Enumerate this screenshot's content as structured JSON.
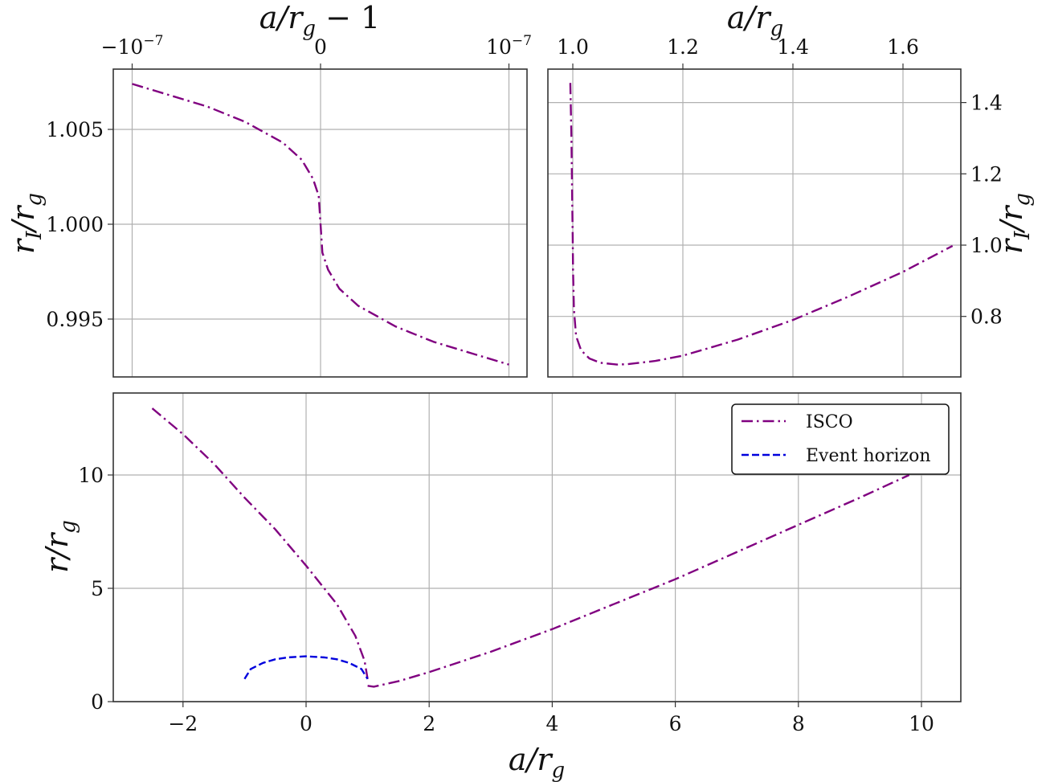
{
  "colors": {
    "isco": "#800080",
    "event_horizon": "#0000dd",
    "grid": "#b0b0b0",
    "frame": "#333333"
  },
  "chart_data": [
    {
      "id": "top-left",
      "type": "line",
      "title": "",
      "xlabel": "a/r_g − 1",
      "xlabel_position": "top",
      "ylabel": "r_I/r_g",
      "ylabel_position": "left",
      "xlim": [
        -1.1e-07,
        1.1e-07
      ],
      "ylim": [
        0.9919,
        1.0082
      ],
      "x_ticks": [
        -1e-07,
        0,
        1e-07
      ],
      "x_tick_labels": [
        "−10",
        "0",
        "10"
      ],
      "x_tick_exponents": [
        "−7",
        "",
        "−7"
      ],
      "y_ticks": [
        1.005,
        1.0,
        0.995
      ],
      "y_tick_labels": [
        "1.005",
        "1.000",
        "0.995"
      ],
      "grid": true,
      "series": [
        {
          "name": "ISCO",
          "style": "dashdot",
          "x": [
            -1e-07,
            -8e-08,
            -6e-08,
            -4e-08,
            -2e-08,
            -1e-08,
            -4e-09,
            -1e-09,
            0,
            1e-09,
            4e-09,
            1e-08,
            2e-08,
            4e-08,
            6e-08,
            8e-08,
            1e-07
          ],
          "y": [
            1.0074,
            1.0068,
            1.0062,
            1.0054,
            1.0043,
            1.0034,
            1.0024,
            1.0015,
            1.0,
            0.9985,
            0.9976,
            0.9966,
            0.9957,
            0.9946,
            0.9938,
            0.9932,
            0.9926
          ]
        }
      ]
    },
    {
      "id": "top-right",
      "type": "line",
      "title": "",
      "xlabel": "a/r_g",
      "xlabel_position": "top",
      "ylabel": "r_I/r_g",
      "ylabel_position": "right",
      "xlim": [
        0.982,
        1.7325
      ],
      "ylim": [
        0.6347,
        1.4974
      ],
      "x_ticks": [
        1.0,
        1.2,
        1.4,
        1.6
      ],
      "x_tick_labels": [
        "1.0",
        "1.2",
        "1.4",
        "1.6"
      ],
      "y_ticks": [
        1.4,
        1.2,
        1.0,
        0.8
      ],
      "y_tick_labels": [
        "1.4",
        "1.2",
        "1.0",
        "0.8"
      ],
      "grid": true,
      "series": [
        {
          "name": "ISCO",
          "style": "dashdot",
          "x": [
            0.9955,
            0.9975,
            0.999,
            0.9998,
            1.0,
            1.0005,
            1.002,
            1.006,
            1.015,
            1.03,
            1.05,
            1.08,
            1.1,
            1.15,
            1.2,
            1.3,
            1.4,
            1.5,
            1.6,
            1.69
          ],
          "y": [
            1.455,
            1.3,
            1.12,
            1.02,
            1.0,
            0.93,
            0.82,
            0.745,
            0.705,
            0.682,
            0.67,
            0.665,
            0.666,
            0.675,
            0.69,
            0.735,
            0.79,
            0.855,
            0.925,
            0.998
          ]
        }
      ]
    },
    {
      "id": "bottom",
      "type": "line",
      "title": "",
      "xlabel": "a/r_g",
      "xlabel_position": "bottom",
      "ylabel": "r/r_g",
      "ylabel_position": "left",
      "xlim": [
        -3.13,
        10.64
      ],
      "ylim": [
        0,
        10.0
      ],
      "y_display_top": 13.6,
      "x_ticks": [
        -2,
        0,
        2,
        4,
        6,
        8,
        10
      ],
      "x_tick_labels": [
        "−2",
        "0",
        "2",
        "4",
        "6",
        "8",
        "10"
      ],
      "y_ticks": [
        0,
        5,
        10
      ],
      "y_tick_labels": [
        "0",
        "5",
        "10"
      ],
      "grid": true,
      "legend": {
        "position": "upper right",
        "entries": [
          "ISCO",
          "Event horizon"
        ]
      },
      "series": [
        {
          "name": "ISCO",
          "style": "dashdot",
          "segments": [
            {
              "x": [
                -2.5,
                -2.0,
                -1.5,
                -1.0,
                -0.5,
                0.0,
                0.5,
                0.8,
                0.95,
                1.0
              ],
              "y": [
                12.94,
                11.8,
                10.5,
                9.0,
                7.6,
                6.0,
                4.3,
                2.9,
                1.8,
                1.0
              ]
            },
            {
              "x": [
                1.0,
                1.1,
                1.5,
                2.0,
                3.0,
                4.0,
                5.0,
                6.0,
                7.0,
                8.0,
                9.0,
                9.8
              ],
              "y": [
                0.7,
                0.66,
                0.9,
                1.3,
                2.2,
                3.2,
                4.3,
                5.4,
                6.6,
                7.8,
                9.0,
                10.0
              ]
            }
          ]
        },
        {
          "name": "Event horizon",
          "style": "dashed",
          "x": [
            -1.0,
            -0.9,
            -0.7,
            -0.5,
            -0.3,
            0.0,
            0.3,
            0.5,
            0.7,
            0.9,
            1.0
          ],
          "y": [
            1.0,
            1.44,
            1.71,
            1.87,
            1.95,
            2.0,
            1.95,
            1.87,
            1.71,
            1.44,
            1.0
          ]
        }
      ]
    }
  ],
  "legend": {
    "items": [
      {
        "label": "ISCO",
        "style": "dashdot"
      },
      {
        "label": "Event horizon",
        "style": "dashed"
      }
    ]
  },
  "labels": {
    "top_left_xlabel_main": "a/r",
    "top_left_xlabel_sub": "g",
    "top_left_xlabel_tail": " − 1",
    "top_right_xlabel_main": "a/r",
    "top_right_xlabel_sub": "g",
    "ylabel_r_I_main": "r",
    "ylabel_r_I_sub": "I",
    "ylabel_r_I_tail": "/r",
    "ylabel_r_I_sub2": "g",
    "bottom_ylabel_main": "r/r",
    "bottom_ylabel_sub": "g",
    "bottom_xlabel_main": "a/r",
    "bottom_xlabel_sub": "g"
  }
}
